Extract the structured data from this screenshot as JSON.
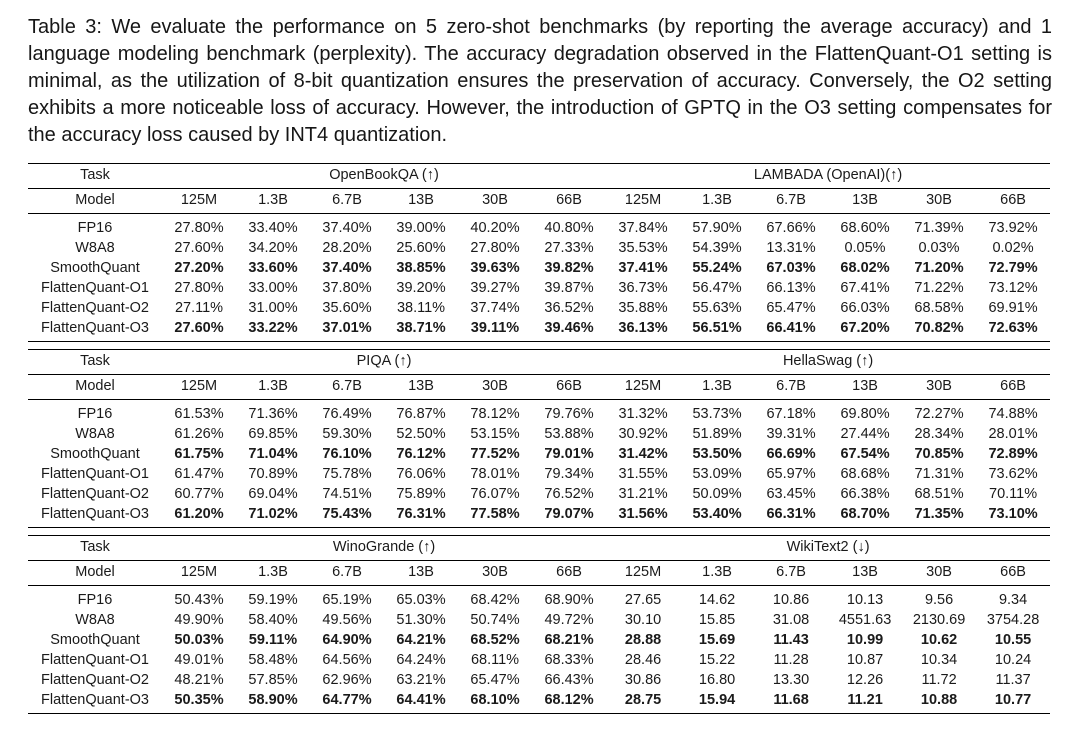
{
  "caption": {
    "label": "Table 3:",
    "text": " We evaluate the performance on 5 zero-shot benchmarks (by reporting the average accuracy) and 1 language modeling benchmark (perplexity). The accuracy degradation observed in the FlattenQuant-O1 setting is minimal, as the utilization of 8-bit quantization ensures the preservation of accuracy. Conversely, the O2 setting exhibits a more noticeable loss of accuracy. However, the introduction of GPTQ in the O3 setting compensates for the accuracy loss caused by INT4 quantization."
  },
  "table": {
    "task_label": "Task",
    "model_label": "Model",
    "sizes": [
      "125M",
      "1.3B",
      "6.7B",
      "13B",
      "30B",
      "66B"
    ],
    "sections": [
      {
        "left_title": "OpenBookQA (↑)",
        "right_title": "LAMBADA (OpenAI)(↑)",
        "rows": [
          {
            "model": "FP16",
            "bold": false,
            "left": [
              "27.80%",
              "33.40%",
              "37.40%",
              "39.00%",
              "40.20%",
              "40.80%"
            ],
            "right": [
              "37.84%",
              "57.90%",
              "67.66%",
              "68.60%",
              "71.39%",
              "73.92%"
            ]
          },
          {
            "model": "W8A8",
            "bold": false,
            "left": [
              "27.60%",
              "34.20%",
              "28.20%",
              "25.60%",
              "27.80%",
              "27.33%"
            ],
            "right": [
              "35.53%",
              "54.39%",
              "13.31%",
              "0.05%",
              "0.03%",
              "0.02%"
            ]
          },
          {
            "model": "SmoothQuant",
            "bold": true,
            "left": [
              "27.20%",
              "33.60%",
              "37.40%",
              "38.85%",
              "39.63%",
              "39.82%"
            ],
            "right": [
              "37.41%",
              "55.24%",
              "67.03%",
              "68.02%",
              "71.20%",
              "72.79%"
            ]
          },
          {
            "model": "FlattenQuant-O1",
            "bold": false,
            "left": [
              "27.80%",
              "33.00%",
              "37.80%",
              "39.20%",
              "39.27%",
              "39.87%"
            ],
            "right": [
              "36.73%",
              "56.47%",
              "66.13%",
              "67.41%",
              "71.22%",
              "73.12%"
            ]
          },
          {
            "model": "FlattenQuant-O2",
            "bold": false,
            "left": [
              "27.11%",
              "31.00%",
              "35.60%",
              "38.11%",
              "37.74%",
              "36.52%"
            ],
            "right": [
              "35.88%",
              "55.63%",
              "65.47%",
              "66.03%",
              "68.58%",
              "69.91%"
            ]
          },
          {
            "model": "FlattenQuant-O3",
            "bold": true,
            "left": [
              "27.60%",
              "33.22%",
              "37.01%",
              "38.71%",
              "39.11%",
              "39.46%"
            ],
            "right": [
              "36.13%",
              "56.51%",
              "66.41%",
              "67.20%",
              "70.82%",
              "72.63%"
            ]
          }
        ]
      },
      {
        "left_title": "PIQA (↑)",
        "right_title": "HellaSwag (↑)",
        "rows": [
          {
            "model": "FP16",
            "bold": false,
            "left": [
              "61.53%",
              "71.36%",
              "76.49%",
              "76.87%",
              "78.12%",
              "79.76%"
            ],
            "right": [
              "31.32%",
              "53.73%",
              "67.18%",
              "69.80%",
              "72.27%",
              "74.88%"
            ]
          },
          {
            "model": "W8A8",
            "bold": false,
            "left": [
              "61.26%",
              "69.85%",
              "59.30%",
              "52.50%",
              "53.15%",
              "53.88%"
            ],
            "right": [
              "30.92%",
              "51.89%",
              "39.31%",
              "27.44%",
              "28.34%",
              "28.01%"
            ]
          },
          {
            "model": "SmoothQuant",
            "bold": true,
            "left": [
              "61.75%",
              "71.04%",
              "76.10%",
              "76.12%",
              "77.52%",
              "79.01%"
            ],
            "right": [
              "31.42%",
              "53.50%",
              "66.69%",
              "67.54%",
              "70.85%",
              "72.89%"
            ]
          },
          {
            "model": "FlattenQuant-O1",
            "bold": false,
            "left": [
              "61.47%",
              "70.89%",
              "75.78%",
              "76.06%",
              "78.01%",
              "79.34%"
            ],
            "right": [
              "31.55%",
              "53.09%",
              "65.97%",
              "68.68%",
              "71.31%",
              "73.62%"
            ]
          },
          {
            "model": "FlattenQuant-O2",
            "bold": false,
            "left": [
              "60.77%",
              "69.04%",
              "74.51%",
              "75.89%",
              "76.07%",
              "76.52%"
            ],
            "right": [
              "31.21%",
              "50.09%",
              "63.45%",
              "66.38%",
              "68.51%",
              "70.11%"
            ]
          },
          {
            "model": "FlattenQuant-O3",
            "bold": true,
            "left": [
              "61.20%",
              "71.02%",
              "75.43%",
              "76.31%",
              "77.58%",
              "79.07%"
            ],
            "right": [
              "31.56%",
              "53.40%",
              "66.31%",
              "68.70%",
              "71.35%",
              "73.10%"
            ]
          }
        ]
      },
      {
        "left_title": "WinoGrande (↑)",
        "right_title": "WikiText2 (↓)",
        "rows": [
          {
            "model": "FP16",
            "bold": false,
            "left": [
              "50.43%",
              "59.19%",
              "65.19%",
              "65.03%",
              "68.42%",
              "68.90%"
            ],
            "right": [
              "27.65",
              "14.62",
              "10.86",
              "10.13",
              "9.56",
              "9.34"
            ]
          },
          {
            "model": "W8A8",
            "bold": false,
            "left": [
              "49.90%",
              "58.40%",
              "49.56%",
              "51.30%",
              "50.74%",
              "49.72%"
            ],
            "right": [
              "30.10",
              "15.85",
              "31.08",
              "4551.63",
              "2130.69",
              "3754.28"
            ]
          },
          {
            "model": "SmoothQuant",
            "bold": true,
            "left": [
              "50.03%",
              "59.11%",
              "64.90%",
              "64.21%",
              "68.52%",
              "68.21%"
            ],
            "right": [
              "28.88",
              "15.69",
              "11.43",
              "10.99",
              "10.62",
              "10.55"
            ]
          },
          {
            "model": "FlattenQuant-O1",
            "bold": false,
            "left": [
              "49.01%",
              "58.48%",
              "64.56%",
              "64.24%",
              "68.11%",
              "68.33%"
            ],
            "right": [
              "28.46",
              "15.22",
              "11.28",
              "10.87",
              "10.34",
              "10.24"
            ]
          },
          {
            "model": "FlattenQuant-O2",
            "bold": false,
            "left": [
              "48.21%",
              "57.85%",
              "62.96%",
              "63.21%",
              "65.47%",
              "66.43%"
            ],
            "right": [
              "30.86",
              "16.80",
              "13.30",
              "12.26",
              "11.72",
              "11.37"
            ]
          },
          {
            "model": "FlattenQuant-O3",
            "bold": true,
            "left": [
              "50.35%",
              "58.90%",
              "64.77%",
              "64.41%",
              "68.10%",
              "68.12%"
            ],
            "right": [
              "28.75",
              "15.94",
              "11.68",
              "11.21",
              "10.88",
              "10.77"
            ]
          }
        ]
      }
    ]
  }
}
